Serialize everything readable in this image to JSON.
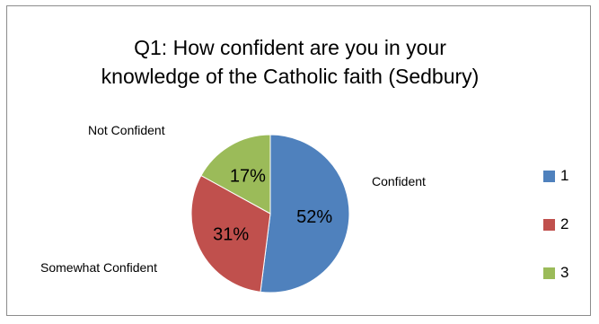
{
  "chart_data": {
    "type": "pie",
    "title_lines": [
      "Q1: How confident are you in your",
      "knowledge of the Catholic faith (Sedbury)"
    ],
    "categories": [
      "1",
      "2",
      "3"
    ],
    "category_labels": [
      "Confident",
      "Somewhat Confident",
      "Not Confident"
    ],
    "values": [
      52,
      31,
      17
    ],
    "value_labels": [
      "52%",
      "31%",
      "17%"
    ],
    "colors": [
      "#4f81bd",
      "#c0504d",
      "#9bbb59"
    ],
    "legend_position": "right"
  }
}
